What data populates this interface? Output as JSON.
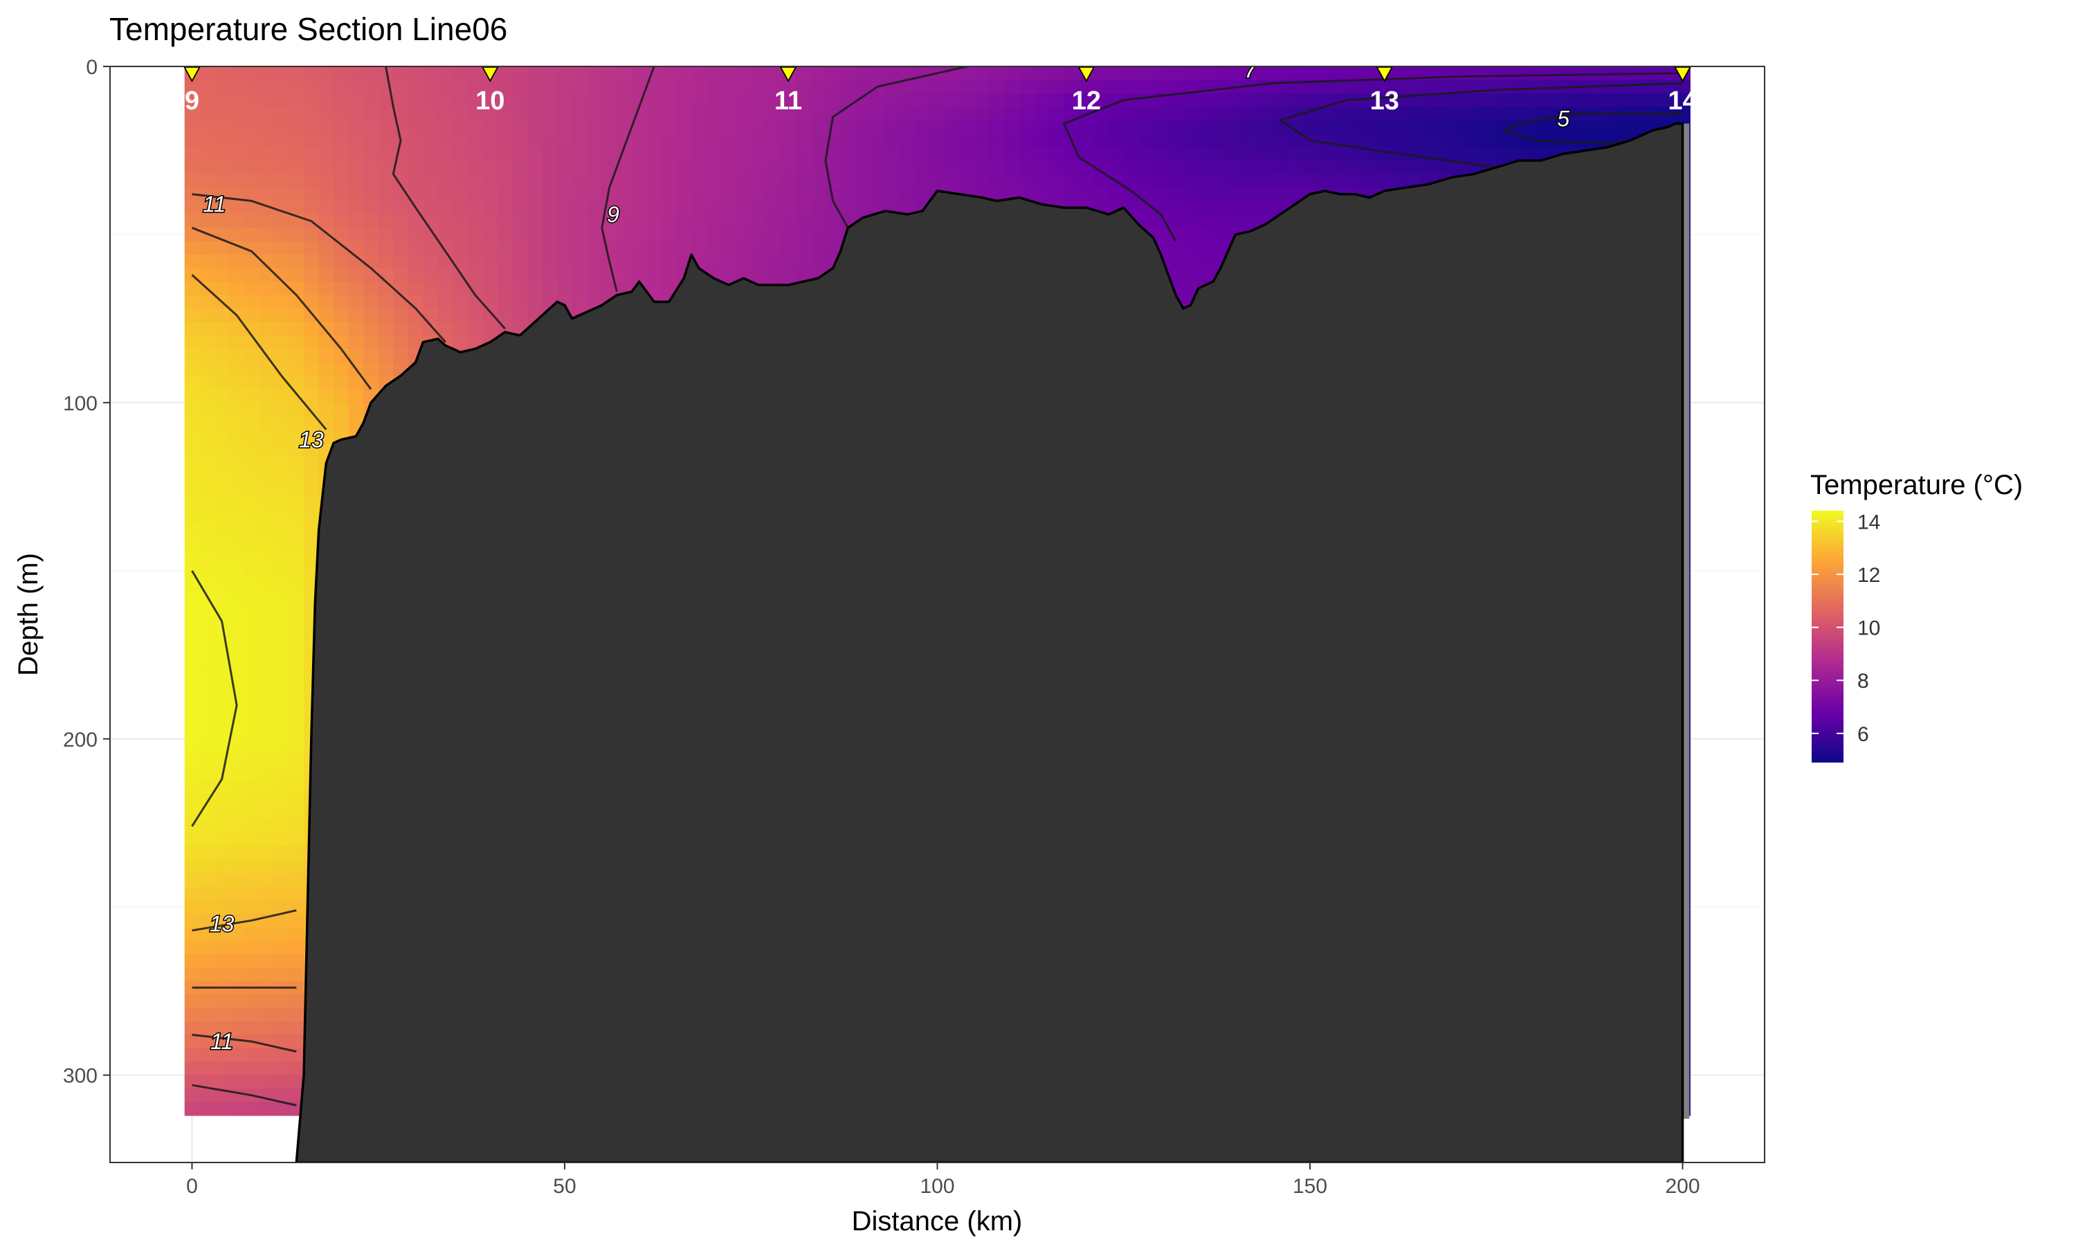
{
  "chart_data": {
    "type": "heatmap",
    "title": "Temperature Section Line06",
    "xlabel": "Distance (km)",
    "ylabel": "Depth (m)",
    "xlim": [
      -11,
      211
    ],
    "ylim": [
      0,
      326
    ],
    "y_reversed": true,
    "x_ticks": [
      0,
      50,
      100,
      150,
      200
    ],
    "y_ticks": [
      0,
      100,
      200,
      300
    ],
    "grid": true,
    "legend": {
      "title": "Temperature (°C)",
      "placement": "right",
      "ticks": [
        6,
        8,
        10,
        12,
        14
      ],
      "range": [
        4.9,
        14.4
      ],
      "colors": [
        "#0d0887",
        "#6a00a8",
        "#b12a90",
        "#e16462",
        "#fca636",
        "#f0f921"
      ]
    },
    "stations": [
      {
        "label": "9",
        "x": 0
      },
      {
        "label": "10",
        "x": 40
      },
      {
        "label": "11",
        "x": 80
      },
      {
        "label": "12",
        "x": 120
      },
      {
        "label": "13",
        "x": 160
      },
      {
        "label": "14",
        "x": 200
      }
    ],
    "station_marker_color": "#ffff00",
    "bathymetry_color": "#333333",
    "bathymetry": [
      [
        14,
        326
      ],
      [
        15,
        300
      ],
      [
        16,
        200
      ],
      [
        16.5,
        160
      ],
      [
        17,
        138
      ],
      [
        18,
        118
      ],
      [
        19,
        112
      ],
      [
        20,
        111
      ],
      [
        22,
        110
      ],
      [
        23,
        106
      ],
      [
        24,
        100
      ],
      [
        26,
        95
      ],
      [
        28,
        92
      ],
      [
        30,
        88
      ],
      [
        31,
        82
      ],
      [
        33,
        81
      ],
      [
        34,
        83
      ],
      [
        36,
        85
      ],
      [
        38,
        84
      ],
      [
        40,
        82
      ],
      [
        42,
        79
      ],
      [
        44,
        80
      ],
      [
        46,
        76
      ],
      [
        48,
        72
      ],
      [
        49,
        70
      ],
      [
        50,
        71
      ],
      [
        51,
        75
      ],
      [
        53,
        73
      ],
      [
        55,
        71
      ],
      [
        57,
        68
      ],
      [
        59,
        67
      ],
      [
        60,
        64
      ],
      [
        62,
        70
      ],
      [
        64,
        70
      ],
      [
        66,
        63
      ],
      [
        67,
        56
      ],
      [
        68,
        60
      ],
      [
        70,
        63
      ],
      [
        72,
        65
      ],
      [
        74,
        63
      ],
      [
        76,
        65
      ],
      [
        78,
        65
      ],
      [
        80,
        65
      ],
      [
        82,
        64
      ],
      [
        84,
        63
      ],
      [
        86,
        60
      ],
      [
        87,
        55
      ],
      [
        88,
        48
      ],
      [
        90,
        45
      ],
      [
        93,
        43
      ],
      [
        96,
        44
      ],
      [
        98,
        43
      ],
      [
        100,
        37
      ],
      [
        103,
        38
      ],
      [
        106,
        39
      ],
      [
        108,
        40
      ],
      [
        111,
        39
      ],
      [
        114,
        41
      ],
      [
        117,
        42
      ],
      [
        120,
        42
      ],
      [
        123,
        44
      ],
      [
        125,
        42
      ],
      [
        127,
        47
      ],
      [
        129,
        51
      ],
      [
        130,
        56
      ],
      [
        131,
        62
      ],
      [
        132,
        68
      ],
      [
        133,
        72
      ],
      [
        134,
        71
      ],
      [
        135,
        66
      ],
      [
        136,
        65
      ],
      [
        137,
        64
      ],
      [
        138,
        60
      ],
      [
        139,
        55
      ],
      [
        140,
        50
      ],
      [
        142,
        49
      ],
      [
        144,
        47
      ],
      [
        146,
        44
      ],
      [
        148,
        41
      ],
      [
        150,
        38
      ],
      [
        152,
        37
      ],
      [
        154,
        38
      ],
      [
        156,
        38
      ],
      [
        158,
        39
      ],
      [
        160,
        37
      ],
      [
        163,
        36
      ],
      [
        166,
        35
      ],
      [
        169,
        33
      ],
      [
        172,
        32
      ],
      [
        175,
        30
      ],
      [
        178,
        28
      ],
      [
        181,
        28
      ],
      [
        184,
        26
      ],
      [
        187,
        25
      ],
      [
        190,
        24
      ],
      [
        193,
        22
      ],
      [
        195,
        20
      ],
      [
        196,
        19
      ],
      [
        198,
        18
      ],
      [
        199,
        17
      ],
      [
        200,
        17
      ],
      [
        200,
        326
      ]
    ],
    "contours": [
      {
        "level": 11,
        "points": [
          [
            0,
            38
          ],
          [
            8,
            40
          ],
          [
            16,
            46
          ],
          [
            24,
            60
          ],
          [
            30,
            72
          ],
          [
            34,
            82
          ]
        ]
      },
      {
        "level": 12,
        "points": [
          [
            0,
            48
          ],
          [
            8,
            55
          ],
          [
            14,
            68
          ],
          [
            20,
            84
          ],
          [
            24,
            96
          ]
        ]
      },
      {
        "level": 13,
        "points": [
          [
            0,
            62
          ],
          [
            6,
            74
          ],
          [
            12,
            92
          ],
          [
            18,
            108
          ]
        ]
      },
      {
        "level": 13,
        "points": [
          [
            0,
            150
          ],
          [
            4,
            165
          ],
          [
            6,
            190
          ],
          [
            4,
            212
          ],
          [
            0,
            226
          ]
        ]
      },
      {
        "level": 13,
        "points": [
          [
            0,
            257
          ],
          [
            8,
            254
          ],
          [
            14,
            251
          ]
        ]
      },
      {
        "level": 12,
        "points": [
          [
            0,
            274
          ],
          [
            14,
            274
          ]
        ]
      },
      {
        "level": 11,
        "points": [
          [
            0,
            288
          ],
          [
            8,
            290
          ],
          [
            14,
            293
          ]
        ]
      },
      {
        "level": 10,
        "points": [
          [
            0,
            303
          ],
          [
            8,
            306
          ],
          [
            14,
            309
          ]
        ]
      },
      {
        "level": 10,
        "points": [
          [
            26,
            0
          ],
          [
            27,
            12
          ],
          [
            28,
            22
          ],
          [
            27,
            32
          ],
          [
            30,
            42
          ],
          [
            34,
            55
          ],
          [
            38,
            68
          ],
          [
            42,
            78
          ]
        ]
      },
      {
        "level": 9,
        "points": [
          [
            62,
            0
          ],
          [
            60,
            12
          ],
          [
            58,
            24
          ],
          [
            56,
            36
          ],
          [
            55,
            48
          ],
          [
            56,
            58
          ],
          [
            57,
            67
          ]
        ]
      },
      {
        "level": 8,
        "points": [
          [
            104,
            0
          ],
          [
            92,
            6
          ],
          [
            86,
            15
          ],
          [
            85,
            28
          ],
          [
            86,
            40
          ],
          [
            88,
            48
          ]
        ]
      },
      {
        "level": 7,
        "points": [
          [
            200,
            2
          ],
          [
            170,
            3
          ],
          [
            145,
            5
          ],
          [
            125,
            10
          ],
          [
            117,
            17
          ],
          [
            119,
            27
          ],
          [
            126,
            37
          ],
          [
            130,
            44
          ],
          [
            132,
            52
          ]
        ]
      },
      {
        "level": 7,
        "points": [
          [
            142,
            0
          ],
          [
            142,
            3
          ]
        ]
      },
      {
        "level": 6,
        "points": [
          [
            200,
            5
          ],
          [
            175,
            7
          ],
          [
            155,
            10
          ],
          [
            146,
            16
          ],
          [
            150,
            22
          ],
          [
            162,
            26
          ],
          [
            175,
            30
          ]
        ]
      },
      {
        "level": 5,
        "points": [
          [
            200,
            14
          ],
          [
            186,
            14
          ],
          [
            178,
            17
          ],
          [
            176,
            19
          ],
          [
            180,
            22
          ],
          [
            190,
            23
          ],
          [
            196,
            21
          ]
        ]
      }
    ],
    "contour_labels": [
      {
        "text": "11",
        "x": 3,
        "y": 41
      },
      {
        "text": "9",
        "x": 56.5,
        "y": 44
      },
      {
        "text": "7",
        "x": 142,
        "y": 1
      },
      {
        "text": "5",
        "x": 184,
        "y": 15.5
      },
      {
        "text": "13",
        "x": 16,
        "y": 111
      },
      {
        "text": "13",
        "x": 4,
        "y": 255
      },
      {
        "text": "11",
        "x": 4,
        "y": 290
      }
    ],
    "temperature_profiles": [
      {
        "x": 0,
        "depth": [
          0,
          30,
          45,
          60,
          80,
          100,
          130,
          160,
          200,
          230,
          260,
          290,
          312
        ],
        "temp": [
          10.6,
          11.0,
          11.5,
          12.5,
          13.4,
          13.8,
          14.0,
          14.3,
          14.3,
          13.9,
          12.8,
          11.0,
          9.5
        ]
      },
      {
        "x": 14,
        "depth": [
          0,
          30,
          45,
          60,
          80,
          100,
          130,
          160,
          200,
          230,
          260,
          290,
          312
        ],
        "temp": [
          10.4,
          10.8,
          11.2,
          12.0,
          12.9,
          13.4,
          13.8,
          14.1,
          14.1,
          13.7,
          12.6,
          10.8,
          9.4
        ]
      },
      {
        "x": 20,
        "depth": [
          0,
          40,
          60,
          80,
          100,
          115
        ],
        "temp": [
          10.2,
          10.6,
          11.2,
          12.2,
          12.9,
          13.1
        ]
      },
      {
        "x": 30,
        "depth": [
          0,
          40,
          60,
          80,
          95
        ],
        "temp": [
          9.9,
          10.1,
          10.4,
          10.9,
          11.3
        ]
      },
      {
        "x": 40,
        "depth": [
          0,
          40,
          60,
          75,
          86
        ],
        "temp": [
          9.6,
          9.8,
          9.9,
          10.0,
          10.1
        ]
      },
      {
        "x": 50,
        "depth": [
          0,
          40,
          60,
          80
        ],
        "temp": [
          9.3,
          9.2,
          9.2,
          9.3
        ]
      },
      {
        "x": 60,
        "depth": [
          0,
          40,
          60,
          72
        ],
        "temp": [
          8.9,
          8.9,
          8.8,
          8.8
        ]
      },
      {
        "x": 70,
        "depth": [
          0,
          40,
          60,
          70
        ],
        "temp": [
          8.6,
          8.5,
          8.4,
          8.4
        ]
      },
      {
        "x": 80,
        "depth": [
          0,
          40,
          60,
          68
        ],
        "temp": [
          8.4,
          8.2,
          8.1,
          8.1
        ]
      },
      {
        "x": 90,
        "depth": [
          0,
          20,
          40,
          60
        ],
        "temp": [
          8.1,
          7.8,
          7.8,
          7.8
        ]
      },
      {
        "x": 105,
        "depth": [
          0,
          20,
          40,
          60
        ],
        "temp": [
          7.9,
          7.3,
          7.4,
          7.4
        ]
      },
      {
        "x": 120,
        "depth": [
          0,
          10,
          20,
          35,
          50
        ],
        "temp": [
          7.5,
          6.8,
          6.6,
          6.9,
          7.1
        ]
      },
      {
        "x": 135,
        "depth": [
          0,
          10,
          20,
          35,
          50,
          80
        ],
        "temp": [
          7.2,
          6.5,
          6.0,
          6.4,
          6.8,
          7.0
        ]
      },
      {
        "x": 150,
        "depth": [
          0,
          8,
          16,
          26,
          40,
          60
        ],
        "temp": [
          7.0,
          6.2,
          5.6,
          5.9,
          6.5,
          6.8
        ]
      },
      {
        "x": 165,
        "depth": [
          0,
          8,
          16,
          26,
          40
        ],
        "temp": [
          6.9,
          6.0,
          5.4,
          5.5,
          6.2
        ]
      },
      {
        "x": 180,
        "depth": [
          0,
          8,
          14,
          20,
          30
        ],
        "temp": [
          6.8,
          5.8,
          5.3,
          4.9,
          5.4
        ]
      },
      {
        "x": 190,
        "depth": [
          0,
          8,
          14,
          20,
          30
        ],
        "temp": [
          6.8,
          5.7,
          5.2,
          4.9,
          5.2
        ]
      },
      {
        "x": 200,
        "depth": [
          0,
          8,
          14,
          20,
          30
        ],
        "temp": [
          6.8,
          5.6,
          5.0,
          4.9,
          5.1
        ]
      }
    ]
  }
}
